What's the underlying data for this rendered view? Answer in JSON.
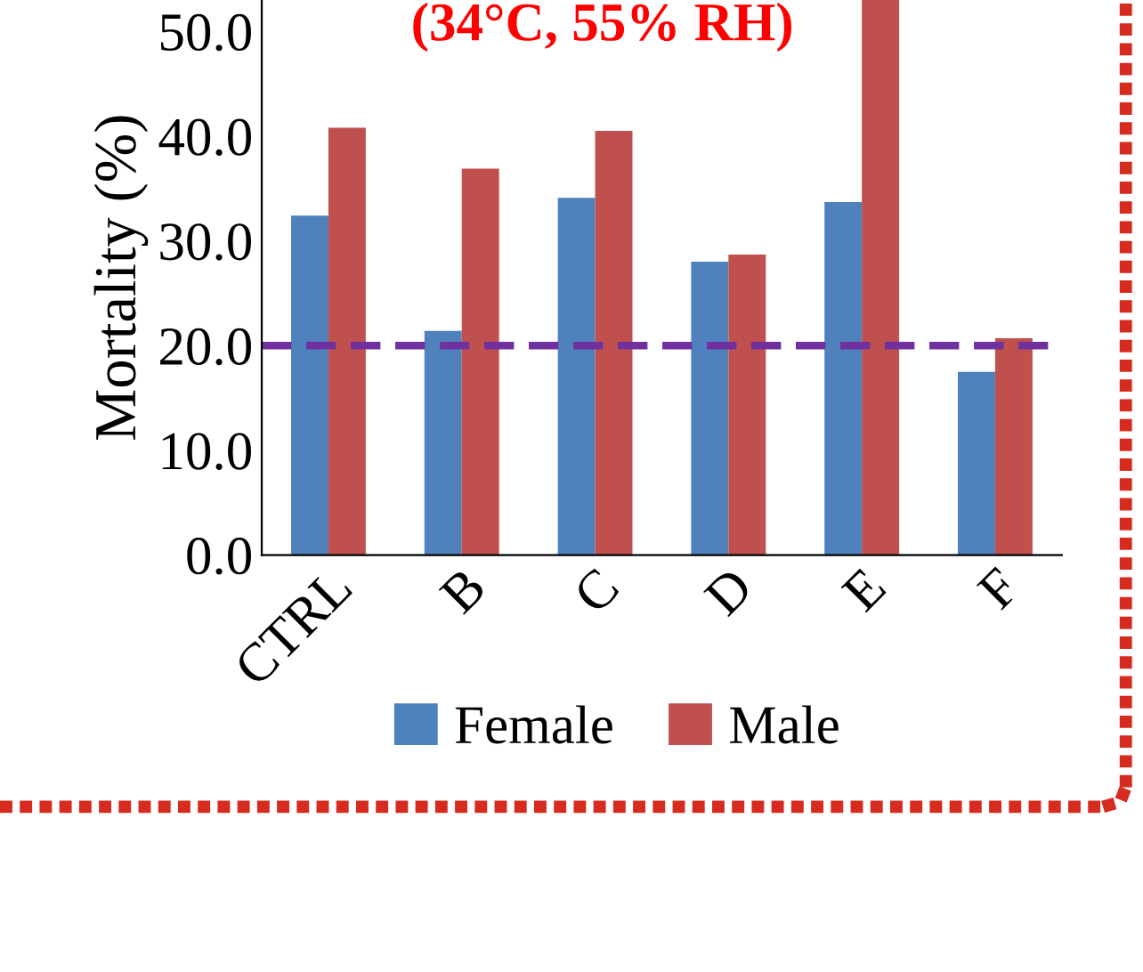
{
  "chart_data": {
    "type": "bar",
    "title": "(34°C, 55% RH)",
    "ylabel": "Mortality (%)",
    "categories": [
      "CTRL",
      "B",
      "C",
      "D",
      "E",
      "F"
    ],
    "series": [
      {
        "name": "Female",
        "color": "#4f81bd",
        "values": [
          32.4,
          21.4,
          34.1,
          28.0,
          33.7,
          17.5
        ]
      },
      {
        "name": "Male",
        "color": "#c0504d",
        "values": [
          40.8,
          36.9,
          40.5,
          28.7,
          53,
          20.7
        ]
      }
    ],
    "ylim": [
      0,
      53
    ],
    "yticks": [
      {
        "value": 0,
        "label": "0.0"
      },
      {
        "value": 10,
        "label": "10.0"
      },
      {
        "value": 20,
        "label": "20.0"
      },
      {
        "value": 30,
        "label": "30.0"
      },
      {
        "value": 40,
        "label": "40.0"
      },
      {
        "value": 50,
        "label": "50.0"
      }
    ],
    "ref_lines": [
      {
        "axis": "y",
        "value": 20,
        "color": "#7030a0",
        "line_style": "dashed"
      }
    ],
    "legend": "bottom",
    "grid": false
  }
}
